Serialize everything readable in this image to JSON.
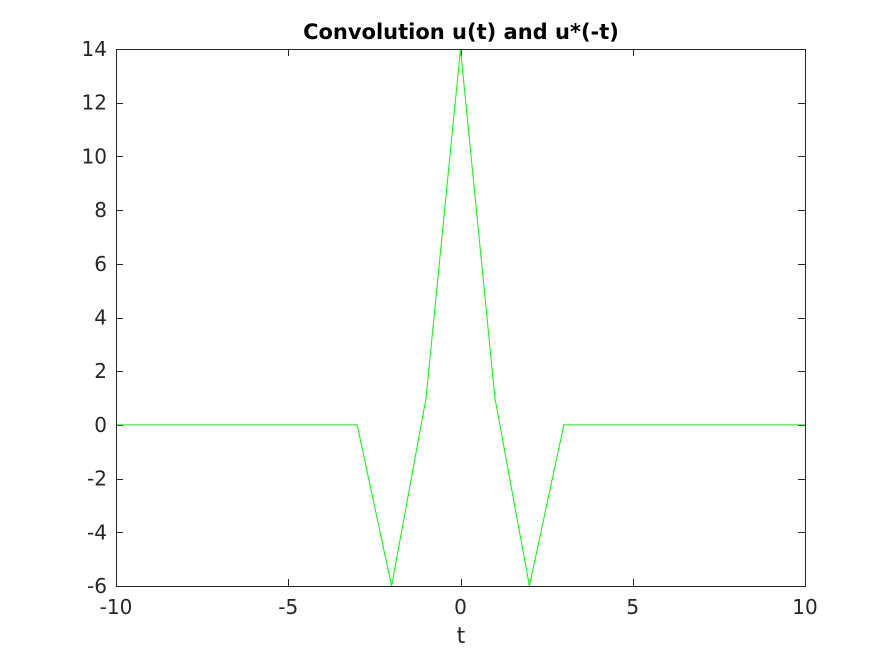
{
  "chart_data": {
    "type": "line",
    "title": "Convolution u(t) and u*(-t)",
    "xlabel": "t",
    "ylabel": "",
    "xlim": [
      -10,
      10
    ],
    "ylim": [
      -6,
      14
    ],
    "xticks": [
      -10,
      -5,
      0,
      5,
      10
    ],
    "xtick_labels": [
      "-10",
      "-5",
      "0",
      "5",
      "10"
    ],
    "yticks": [
      -6,
      -4,
      -2,
      0,
      2,
      4,
      6,
      8,
      10,
      12,
      14
    ],
    "ytick_labels": [
      "-6",
      "-4",
      "-2",
      "0",
      "2",
      "4",
      "6",
      "8",
      "10",
      "12",
      "14"
    ],
    "grid": false,
    "series": [
      {
        "color": "#00ff00",
        "x": [
          -10,
          -9,
          -8,
          -7,
          -6,
          -5,
          -4,
          -3,
          -2,
          -1,
          0,
          1,
          2,
          3,
          4,
          5,
          6,
          7,
          8,
          9,
          10
        ],
        "y": [
          0,
          0,
          0,
          0,
          0,
          0,
          0,
          0,
          -6,
          1,
          14,
          1,
          -6,
          0,
          0,
          0,
          0,
          0,
          0,
          0,
          0
        ]
      }
    ]
  }
}
